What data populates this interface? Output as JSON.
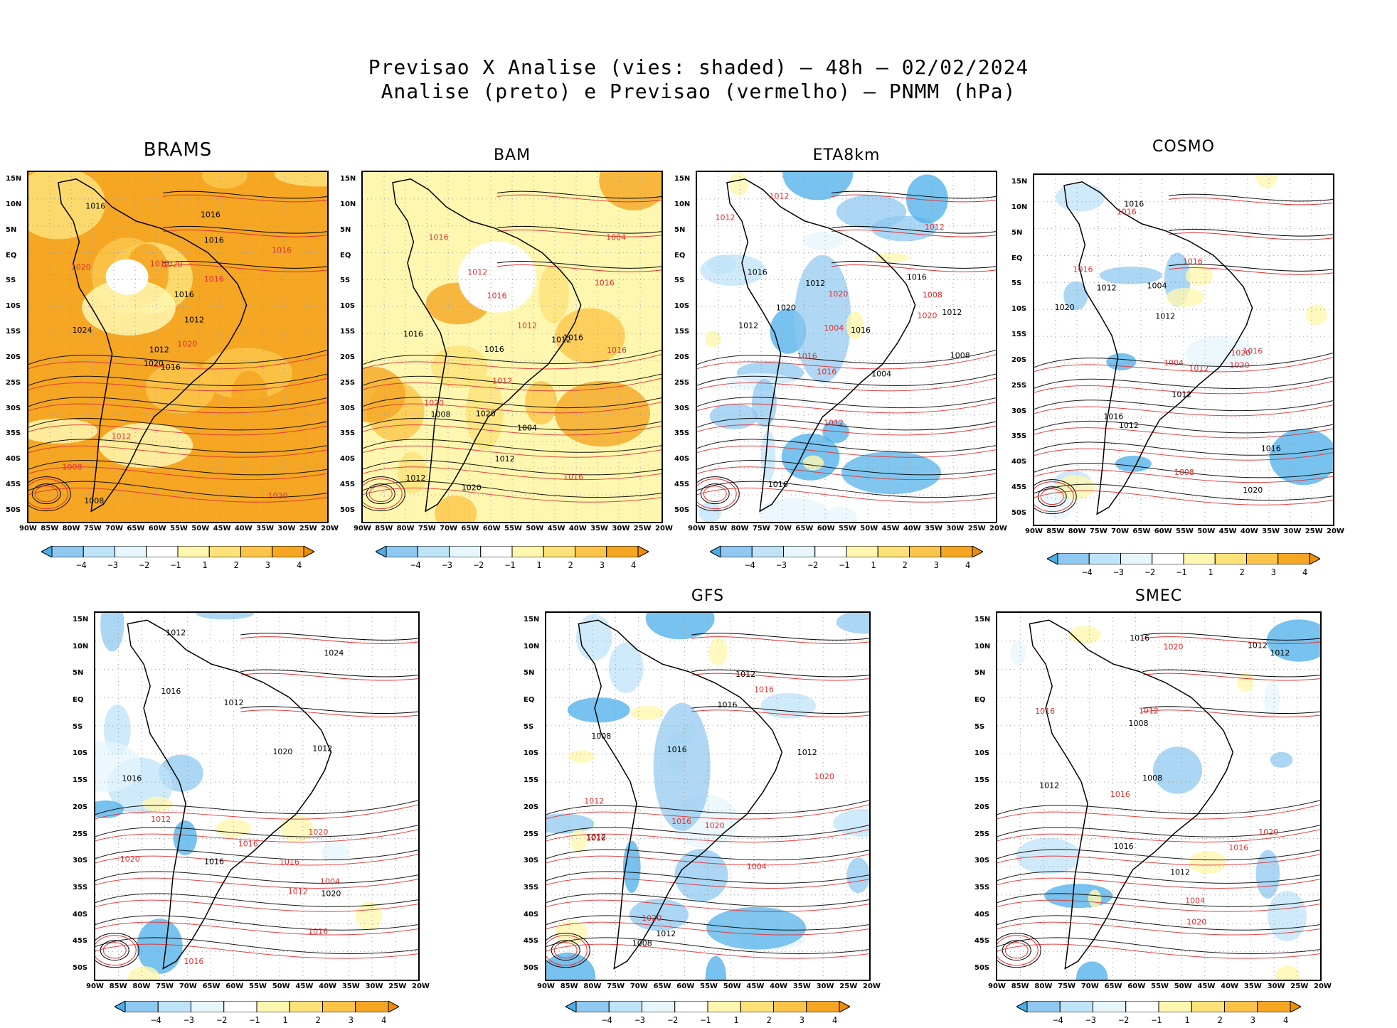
{
  "figure": {
    "title_line1": "Previsao X Analise (vies: shaded) – 48h – 02/02/2024",
    "title_line2": "Analise (preto) e Previsao (vermelho) – PNMM (hPa)"
  },
  "axes": {
    "lat_labels": [
      "15N",
      "10N",
      "5N",
      "EQ",
      "5S",
      "10S",
      "15S",
      "20S",
      "25S",
      "30S",
      "35S",
      "40S",
      "45S",
      "50S"
    ],
    "lon_labels": [
      "90W",
      "85W",
      "80W",
      "75W",
      "70W",
      "65W",
      "60W",
      "55W",
      "50W",
      "45W",
      "40W",
      "35W",
      "30W",
      "25W",
      "20W"
    ]
  },
  "colorbar": {
    "labels": [
      "−4",
      "−3",
      "−2",
      "−1",
      "1",
      "2",
      "3",
      "4"
    ],
    "colors": [
      "#4aaee8",
      "#8fc8f0",
      "#bfe3f8",
      "#e6f6fc",
      "#ffffff",
      "#fff7b0",
      "#fde279",
      "#fcc54a",
      "#f5a623",
      "#f08c00"
    ]
  },
  "contour_colors": {
    "analysis": "#000000",
    "forecast": "#e03030"
  },
  "panels": [
    {
      "id": "brams",
      "title": "BRAMS",
      "bias": "warm_strong",
      "labels": [
        "1016",
        "1020",
        "1012",
        "1008",
        "1012",
        "1012",
        "1016",
        "1020",
        "1016",
        "1020",
        "1016",
        "1020",
        "1024",
        "1016",
        "1020",
        "1016",
        "1008",
        "1012",
        "1016"
      ]
    },
    {
      "id": "bam",
      "title": "BAM",
      "bias": "warm_light",
      "labels": [
        "1012",
        "1016",
        "1016",
        "1012",
        "1012",
        "1012",
        "1016",
        "1020",
        "1020",
        "1016",
        "1008",
        "1016",
        "1020",
        "1016",
        "1012",
        "1004",
        "1004",
        "1016",
        "1016",
        "1012"
      ]
    },
    {
      "id": "eta8km",
      "title": "ETA8km",
      "bias": "cold_medium",
      "labels": [
        "1012",
        "1016",
        "1012",
        "1008",
        "1012",
        "1012",
        "1016",
        "1012",
        "1016",
        "1016",
        "1020",
        "1020",
        "1016",
        "1020",
        "1016",
        "1012",
        "1008",
        "1004",
        "1004",
        "1012"
      ]
    },
    {
      "id": "cosmo",
      "title": "COSMO",
      "bias": "cold_light",
      "labels": [
        "1012",
        "1016",
        "1012",
        "1016",
        "1012",
        "1016",
        "1020",
        "1012",
        "1016",
        "1020",
        "1016",
        "1020",
        "1020",
        "1016",
        "1012",
        "1008",
        "1004",
        "1004",
        "1016"
      ]
    },
    {
      "id": "panel5",
      "title": "",
      "bias": "cold_light",
      "labels": [
        "1012",
        "1016",
        "1012",
        "1012",
        "1016",
        "1016",
        "1020",
        "1016",
        "1020",
        "1012",
        "1016",
        "1020",
        "1016",
        "1020",
        "1012",
        "1004",
        "1024",
        "1016"
      ]
    },
    {
      "id": "gfs",
      "title": "GFS",
      "bias": "cold_medium",
      "labels": [
        "1012",
        "1016",
        "1008",
        "1012",
        "1012",
        "1016",
        "1016",
        "1020",
        "1012",
        "1020",
        "1016",
        "1020",
        "1008",
        "1004",
        "1012",
        "1016"
      ]
    },
    {
      "id": "smec",
      "title": "SMEC",
      "bias": "cold_light",
      "labels": [
        "1012",
        "1016",
        "1008",
        "1012",
        "1012",
        "1016",
        "1016",
        "1020",
        "1012",
        "1020",
        "1016",
        "1020",
        "1008",
        "1004",
        "1012",
        "1016"
      ]
    }
  ]
}
